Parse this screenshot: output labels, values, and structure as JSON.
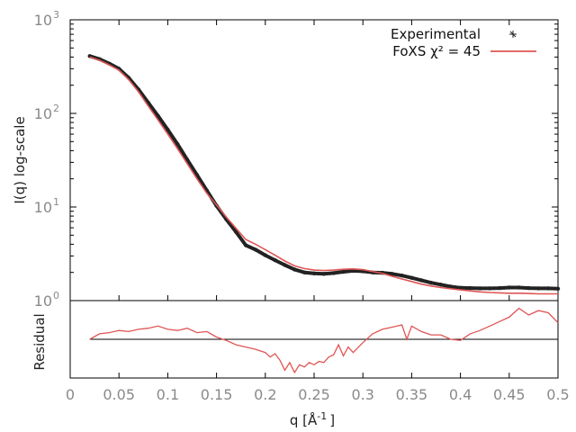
{
  "chart_data": [
    {
      "type": "scatter",
      "panel": "main",
      "ylabel": "I(q) log-scale",
      "y_scale": "log",
      "ylim": [
        1,
        1000
      ],
      "xlim": [
        0,
        0.5
      ],
      "y_ticks": [
        {
          "value": 1,
          "label": "10",
          "exp": "0"
        },
        {
          "value": 10,
          "label": "10",
          "exp": "1"
        },
        {
          "value": 100,
          "label": "10",
          "exp": "2"
        },
        {
          "value": 1000,
          "label": "10",
          "exp": "3"
        }
      ],
      "grid": false,
      "legend_position": "top-right",
      "series": [
        {
          "name": "Experimental",
          "style": "points",
          "color": "#222222",
          "x": [
            0.02,
            0.03,
            0.04,
            0.05,
            0.06,
            0.07,
            0.08,
            0.09,
            0.1,
            0.11,
            0.12,
            0.13,
            0.14,
            0.15,
            0.16,
            0.17,
            0.18,
            0.19,
            0.2,
            0.21,
            0.22,
            0.23,
            0.24,
            0.25,
            0.26,
            0.27,
            0.28,
            0.29,
            0.3,
            0.31,
            0.32,
            0.33,
            0.34,
            0.35,
            0.36,
            0.37,
            0.38,
            0.39,
            0.4,
            0.41,
            0.42,
            0.43,
            0.44,
            0.45,
            0.46,
            0.47,
            0.48,
            0.49,
            0.5
          ],
          "y": [
            410,
            380,
            340,
            300,
            240,
            180,
            130,
            94,
            67,
            47,
            32,
            22,
            15,
            10.3,
            7.4,
            5.4,
            3.9,
            3.5,
            3.05,
            2.7,
            2.4,
            2.15,
            2.0,
            1.95,
            1.93,
            1.97,
            2.03,
            2.08,
            2.06,
            2.0,
            1.98,
            1.93,
            1.85,
            1.75,
            1.65,
            1.55,
            1.48,
            1.41,
            1.37,
            1.36,
            1.35,
            1.35,
            1.36,
            1.38,
            1.38,
            1.36,
            1.35,
            1.35,
            1.34
          ]
        },
        {
          "name": "FoXS χ² = 45",
          "style": "line",
          "color": "#e05555",
          "x": [
            0.02,
            0.03,
            0.04,
            0.05,
            0.06,
            0.07,
            0.08,
            0.09,
            0.1,
            0.11,
            0.12,
            0.13,
            0.14,
            0.15,
            0.16,
            0.17,
            0.18,
            0.19,
            0.2,
            0.21,
            0.22,
            0.23,
            0.24,
            0.25,
            0.26,
            0.27,
            0.28,
            0.29,
            0.3,
            0.31,
            0.32,
            0.33,
            0.34,
            0.35,
            0.36,
            0.37,
            0.38,
            0.39,
            0.4,
            0.41,
            0.42,
            0.43,
            0.44,
            0.45,
            0.46,
            0.47,
            0.48,
            0.49,
            0.5
          ],
          "y": [
            400,
            370,
            330,
            290,
            230,
            170,
            120,
            85,
            60,
            42,
            29,
            20,
            14,
            10.5,
            7.8,
            5.9,
            4.5,
            4.0,
            3.5,
            3.05,
            2.65,
            2.35,
            2.2,
            2.12,
            2.1,
            2.12,
            2.16,
            2.18,
            2.14,
            2.05,
            1.95,
            1.82,
            1.7,
            1.6,
            1.5,
            1.43,
            1.38,
            1.34,
            1.3,
            1.27,
            1.24,
            1.22,
            1.21,
            1.2,
            1.2,
            1.19,
            1.18,
            1.18,
            1.18
          ]
        }
      ]
    },
    {
      "type": "line",
      "panel": "residual",
      "xlabel": "q [Å⁻¹]",
      "xlabel_main": "q [Å",
      "xlabel_sup": "-1",
      "xlabel_end": "]",
      "ylabel": "Residual",
      "xlim": [
        0,
        0.5
      ],
      "ylim": [
        -3.5,
        3.5
      ],
      "x_ticks": [
        {
          "value": 0,
          "label": "0"
        },
        {
          "value": 0.05,
          "label": "0.05"
        },
        {
          "value": 0.1,
          "label": "0.1"
        },
        {
          "value": 0.15,
          "label": "0.15"
        },
        {
          "value": 0.2,
          "label": "0.2"
        },
        {
          "value": 0.25,
          "label": "0.25"
        },
        {
          "value": 0.3,
          "label": "0.3"
        },
        {
          "value": 0.35,
          "label": "0.35"
        },
        {
          "value": 0.4,
          "label": "0.4"
        },
        {
          "value": 0.45,
          "label": "0.45"
        },
        {
          "value": 0.5,
          "label": "0.5"
        }
      ],
      "reference_line": 0,
      "series": [
        {
          "name": "residual",
          "color": "#e05555",
          "x": [
            0.02,
            0.03,
            0.04,
            0.05,
            0.06,
            0.07,
            0.08,
            0.09,
            0.1,
            0.11,
            0.12,
            0.13,
            0.14,
            0.15,
            0.16,
            0.17,
            0.18,
            0.19,
            0.2,
            0.205,
            0.21,
            0.215,
            0.22,
            0.225,
            0.23,
            0.235,
            0.24,
            0.245,
            0.25,
            0.255,
            0.26,
            0.265,
            0.27,
            0.275,
            0.28,
            0.285,
            0.29,
            0.3,
            0.31,
            0.32,
            0.33,
            0.34,
            0.345,
            0.35,
            0.36,
            0.37,
            0.38,
            0.39,
            0.4,
            0.41,
            0.42,
            0.43,
            0.44,
            0.45,
            0.46,
            0.47,
            0.48,
            0.49,
            0.5
          ],
          "y": [
            0.0,
            0.5,
            0.6,
            0.8,
            0.7,
            0.9,
            1.0,
            1.2,
            0.9,
            0.8,
            1.0,
            0.6,
            0.7,
            0.2,
            -0.1,
            -0.5,
            -0.7,
            -0.9,
            -1.2,
            -1.6,
            -1.3,
            -1.9,
            -2.8,
            -2.1,
            -3.0,
            -2.3,
            -2.5,
            -2.1,
            -2.3,
            -2.0,
            -2.1,
            -1.6,
            -1.4,
            -0.5,
            -1.5,
            -0.7,
            -1.2,
            -0.3,
            0.5,
            0.9,
            1.1,
            1.3,
            0.0,
            1.2,
            0.7,
            0.4,
            0.4,
            0.0,
            -0.1,
            0.5,
            0.8,
            1.2,
            1.6,
            2.0,
            2.8,
            2.2,
            2.6,
            2.4,
            1.5
          ]
        }
      ]
    }
  ]
}
